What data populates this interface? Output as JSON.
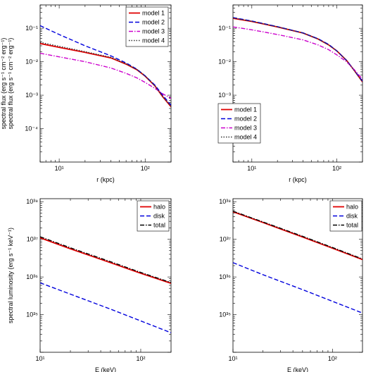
{
  "chart_data": [
    {
      "type": "line",
      "xlabel": "r (kpc)",
      "ylabel": "spectral flux (erg s⁻¹ cm⁻² erg⁻¹)",
      "xscale": "log",
      "yscale": "log",
      "xlim": [
        6,
        200
      ],
      "ylim": [
        1e-05,
        0.5
      ],
      "x_ticks": [
        {
          "v": 10,
          "label": "10¹"
        },
        {
          "v": 100,
          "label": "10²"
        }
      ],
      "y_ticks": [
        {
          "v": 0.0001,
          "label": "10⁻⁴"
        },
        {
          "v": 0.001,
          "label": "10⁻³"
        },
        {
          "v": 0.01,
          "label": "10⁻²"
        },
        {
          "v": 0.1,
          "label": "10⁻¹"
        }
      ],
      "legend": "top-right",
      "series": [
        {
          "name": "model 1",
          "color": "#e00000",
          "dash": "solid",
          "x": [
            6,
            10,
            20,
            40,
            60,
            80,
            100,
            130,
            160,
            200
          ],
          "values": [
            0.035,
            0.027,
            0.019,
            0.013,
            0.0085,
            0.0058,
            0.0037,
            0.0019,
            0.0009,
            0.00045
          ]
        },
        {
          "name": "model 2",
          "color": "#0000dd",
          "dash": "dashed",
          "x": [
            6,
            10,
            20,
            40,
            60,
            80,
            100,
            130,
            160,
            200
          ],
          "values": [
            0.12,
            0.065,
            0.03,
            0.015,
            0.0092,
            0.006,
            0.0038,
            0.002,
            0.001,
            0.0005
          ]
        },
        {
          "name": "model 3",
          "color": "#cc00cc",
          "dash": "dashdot",
          "x": [
            6,
            10,
            20,
            40,
            60,
            80,
            100,
            130,
            160,
            200
          ],
          "values": [
            0.018,
            0.014,
            0.01,
            0.0065,
            0.0045,
            0.0033,
            0.0024,
            0.0016,
            0.0011,
            0.0008
          ]
        },
        {
          "name": "model 4",
          "color": "#333333",
          "dash": "dotted",
          "x": [
            6,
            10,
            20,
            40,
            60,
            80,
            100,
            130,
            160,
            200
          ],
          "values": [
            0.038,
            0.029,
            0.02,
            0.0135,
            0.0087,
            0.0059,
            0.0038,
            0.0019,
            0.0009,
            0.00046
          ]
        }
      ]
    },
    {
      "type": "line",
      "xlabel": "r (kpc)",
      "ylabel": "spectral flux (erg s⁻¹ cm⁻² erg⁻¹)",
      "xscale": "log",
      "yscale": "log",
      "xlim": [
        6,
        200
      ],
      "ylim": [
        1e-05,
        0.5
      ],
      "x_ticks": [
        {
          "v": 10,
          "label": "10¹"
        },
        {
          "v": 100,
          "label": "10²"
        }
      ],
      "y_ticks": [
        {
          "v": 0.0001,
          "label": "10⁻⁴"
        },
        {
          "v": 0.001,
          "label": "10⁻³"
        },
        {
          "v": 0.01,
          "label": "10⁻²"
        },
        {
          "v": 0.1,
          "label": "10⁻¹"
        }
      ],
      "legend": "bottom-left",
      "series": [
        {
          "name": "model 1",
          "color": "#e00000",
          "dash": "solid",
          "x": [
            6,
            10,
            20,
            40,
            60,
            80,
            100,
            130,
            160,
            200
          ],
          "values": [
            0.2,
            0.16,
            0.11,
            0.072,
            0.048,
            0.032,
            0.021,
            0.011,
            0.0055,
            0.0025
          ]
        },
        {
          "name": "model 2",
          "color": "#0000dd",
          "dash": "dashed",
          "x": [
            6,
            10,
            20,
            40,
            60,
            80,
            100,
            130,
            160,
            200
          ],
          "values": [
            0.21,
            0.165,
            0.112,
            0.073,
            0.049,
            0.033,
            0.021,
            0.011,
            0.0056,
            0.0026
          ]
        },
        {
          "name": "model 3",
          "color": "#cc00cc",
          "dash": "dashdot",
          "x": [
            6,
            10,
            20,
            40,
            60,
            80,
            100,
            130,
            160,
            200
          ],
          "values": [
            0.11,
            0.09,
            0.065,
            0.045,
            0.032,
            0.023,
            0.016,
            0.01,
            0.0058,
            0.003
          ]
        },
        {
          "name": "model 4",
          "color": "#333333",
          "dash": "dotted",
          "x": [
            6,
            10,
            20,
            40,
            60,
            80,
            100,
            130,
            160,
            200
          ],
          "values": [
            0.205,
            0.162,
            0.111,
            0.072,
            0.048,
            0.032,
            0.021,
            0.011,
            0.0055,
            0.0025
          ]
        }
      ]
    },
    {
      "type": "line",
      "xlabel": "E (keV)",
      "ylabel": "spectral luminosity (erg s⁻¹ keV⁻¹)",
      "xscale": "log",
      "yscale": "log",
      "xlim": [
        10,
        200
      ],
      "ylim": [
        1e+34,
        1.2e+38
      ],
      "x_ticks": [
        {
          "v": 10,
          "label": "10¹"
        },
        {
          "v": 100,
          "label": "10²"
        }
      ],
      "y_ticks": [
        {
          "v": 1e+35,
          "label": "10³⁵"
        },
        {
          "v": 1e+36,
          "label": "10³⁶"
        },
        {
          "v": 1e+37,
          "label": "10³⁷"
        },
        {
          "v": 1e+38,
          "label": "10³⁸"
        }
      ],
      "legend": "top-right",
      "series": [
        {
          "name": "halo",
          "color": "#e00000",
          "dash": "solid",
          "x": [
            10,
            20,
            50,
            100,
            200
          ],
          "values": [
            1.1e+37,
            5.6e+36,
            2.4e+36,
            1.25e+36,
            6.8e+35
          ]
        },
        {
          "name": "disk",
          "color": "#0000dd",
          "dash": "dashed",
          "x": [
            10,
            20,
            50,
            100,
            200
          ],
          "values": [
            7e+35,
            3.5e+35,
            1.4e+35,
            6.8e+34,
            3.3e+34
          ]
        },
        {
          "name": "total",
          "color": "#000000",
          "dash": "dashdot",
          "x": [
            10,
            20,
            50,
            100,
            200
          ],
          "values": [
            1.17e+37,
            5.95e+36,
            2.55e+36,
            1.32e+36,
            7.1e+35
          ]
        }
      ]
    },
    {
      "type": "line",
      "xlabel": "E (keV)",
      "ylabel": "",
      "xscale": "log",
      "yscale": "log",
      "xlim": [
        10,
        200
      ],
      "ylim": [
        1e+34,
        1.2e+38
      ],
      "x_ticks": [
        {
          "v": 10,
          "label": "10¹"
        },
        {
          "v": 100,
          "label": "10²"
        }
      ],
      "y_ticks": [
        {
          "v": 1e+35,
          "label": "10³⁵"
        },
        {
          "v": 1e+36,
          "label": "10³⁶"
        },
        {
          "v": 1e+37,
          "label": "10³⁷"
        },
        {
          "v": 1e+38,
          "label": "10³⁸"
        }
      ],
      "legend": "top-right",
      "series": [
        {
          "name": "halo",
          "color": "#e00000",
          "dash": "solid",
          "x": [
            10,
            20,
            50,
            100,
            200
          ],
          "values": [
            5.4e+37,
            2.8e+37,
            1.15e+37,
            5.8e+36,
            2.9e+36
          ]
        },
        {
          "name": "disk",
          "color": "#0000dd",
          "dash": "dashed",
          "x": [
            10,
            20,
            50,
            100,
            200
          ],
          "values": [
            2.4e+36,
            1.15e+36,
            4.6e+35,
            2.25e+35,
            1.1e+35
          ]
        },
        {
          "name": "total",
          "color": "#000000",
          "dash": "dashdot",
          "x": [
            10,
            20,
            50,
            100,
            200
          ],
          "values": [
            5.6e+37,
            2.9e+37,
            1.2e+37,
            6.05e+36,
            3e+36
          ]
        }
      ]
    }
  ]
}
